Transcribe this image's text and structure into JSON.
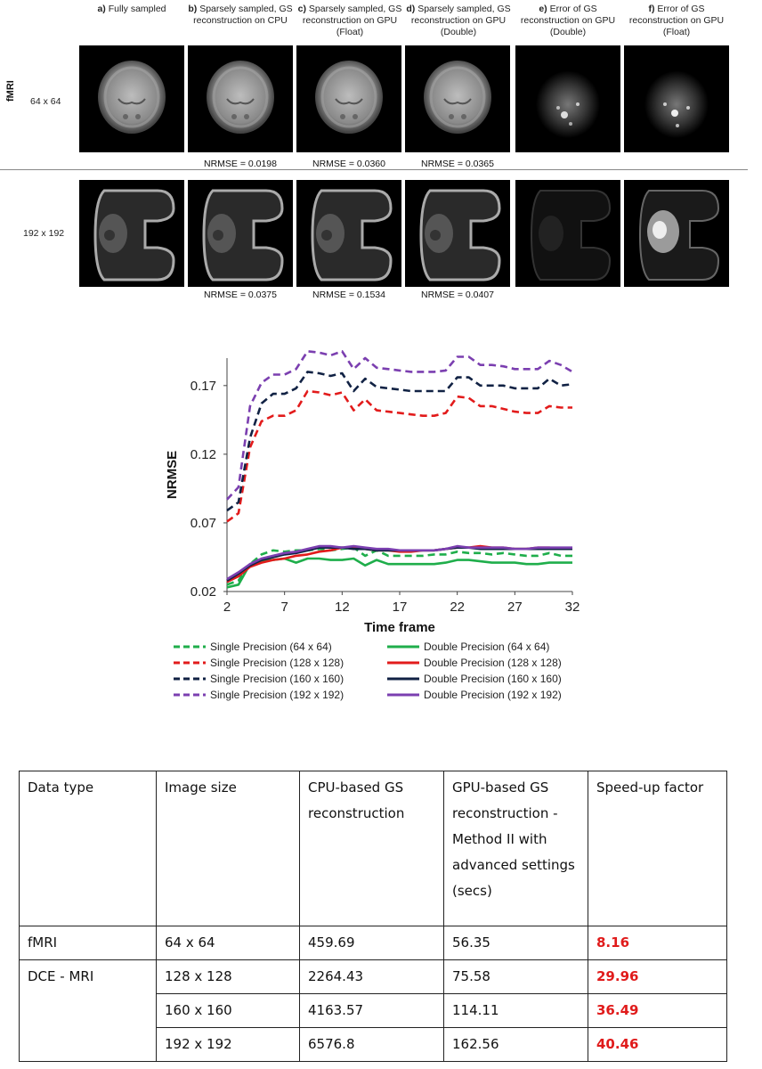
{
  "figure": {
    "row_label_fmri": "fMRI",
    "columns": [
      {
        "letter": "a)",
        "text": "Fully sampled"
      },
      {
        "letter": "b)",
        "text": "Sparsely sampled, GS reconstruction on CPU"
      },
      {
        "letter": "c)",
        "text": "Sparsely sampled, GS reconstruction on GPU (Float)"
      },
      {
        "letter": "d)",
        "text": "Sparsely sampled, GS reconstruction on GPU (Double)"
      },
      {
        "letter": "e)",
        "text": "Error of GS reconstruction on GPU (Double)"
      },
      {
        "letter": "f)",
        "text": "Error of GS reconstruction on GPU (Float)"
      }
    ],
    "rows": [
      {
        "size": "64 x 64",
        "nrmse": [
          "NRMSE = 0.0198",
          "NRMSE = 0.0360",
          "NRMSE = 0.0365"
        ]
      },
      {
        "size": "192 x 192",
        "nrmse": [
          "NRMSE = 0.0375",
          "NRMSE = 0.1534",
          "NRMSE = 0.0407"
        ]
      }
    ]
  },
  "chart_data": {
    "type": "line",
    "xlabel": "Time frame",
    "ylabel": "NRMSE",
    "xlim": [
      2,
      32
    ],
    "ylim": [
      0.02,
      0.19
    ],
    "xticks": [
      2,
      7,
      12,
      17,
      22,
      27,
      32
    ],
    "yticks": [
      0.02,
      0.07,
      0.12,
      0.17
    ],
    "ytick_labels": [
      "0.02",
      "0.07",
      "0.12",
      "0.17"
    ],
    "x": [
      2,
      3,
      4,
      5,
      6,
      7,
      8,
      9,
      10,
      11,
      12,
      13,
      14,
      15,
      16,
      17,
      18,
      19,
      20,
      21,
      22,
      23,
      24,
      25,
      26,
      27,
      28,
      29,
      30,
      31,
      32
    ],
    "series": [
      {
        "name": "Single Precision (64 x 64)",
        "color": "#1fae4b",
        "dash": true,
        "values": [
          0.025,
          0.028,
          0.04,
          0.047,
          0.05,
          0.049,
          0.05,
          0.05,
          0.051,
          0.05,
          0.051,
          0.052,
          0.046,
          0.05,
          0.046,
          0.046,
          0.046,
          0.046,
          0.047,
          0.047,
          0.049,
          0.048,
          0.048,
          0.047,
          0.048,
          0.047,
          0.046,
          0.046,
          0.048,
          0.046,
          0.046
        ]
      },
      {
        "name": "Double Precision (64 x 64)",
        "color": "#1fae4b",
        "dash": false,
        "values": [
          0.023,
          0.025,
          0.04,
          0.042,
          0.043,
          0.044,
          0.041,
          0.044,
          0.044,
          0.043,
          0.043,
          0.044,
          0.039,
          0.043,
          0.04,
          0.04,
          0.04,
          0.04,
          0.04,
          0.041,
          0.043,
          0.043,
          0.042,
          0.041,
          0.041,
          0.041,
          0.04,
          0.04,
          0.041,
          0.041,
          0.041
        ]
      },
      {
        "name": "Single Precision (128 x 128)",
        "color": "#e21b1b",
        "dash": true,
        "values": [
          0.071,
          0.077,
          0.125,
          0.144,
          0.148,
          0.148,
          0.152,
          0.166,
          0.165,
          0.163,
          0.165,
          0.152,
          0.16,
          0.152,
          0.151,
          0.15,
          0.149,
          0.148,
          0.148,
          0.15,
          0.162,
          0.161,
          0.155,
          0.155,
          0.153,
          0.151,
          0.15,
          0.15,
          0.155,
          0.154,
          0.154
        ]
      },
      {
        "name": "Double Precision (128 x 128)",
        "color": "#e21b1b",
        "dash": false,
        "values": [
          0.027,
          0.031,
          0.038,
          0.041,
          0.043,
          0.044,
          0.046,
          0.047,
          0.049,
          0.05,
          0.052,
          0.052,
          0.051,
          0.05,
          0.05,
          0.049,
          0.049,
          0.05,
          0.05,
          0.051,
          0.052,
          0.052,
          0.053,
          0.052,
          0.052,
          0.051,
          0.051,
          0.052,
          0.052,
          0.051,
          0.051
        ]
      },
      {
        "name": "Single Precision (160 x 160)",
        "color": "#112244",
        "dash": true,
        "values": [
          0.079,
          0.085,
          0.132,
          0.157,
          0.164,
          0.164,
          0.168,
          0.18,
          0.179,
          0.177,
          0.179,
          0.166,
          0.175,
          0.169,
          0.168,
          0.167,
          0.166,
          0.166,
          0.166,
          0.166,
          0.176,
          0.176,
          0.17,
          0.17,
          0.17,
          0.168,
          0.168,
          0.168,
          0.175,
          0.17,
          0.171
        ]
      },
      {
        "name": "Double Precision (160 x 160)",
        "color": "#112244",
        "dash": false,
        "values": [
          0.028,
          0.033,
          0.039,
          0.043,
          0.045,
          0.047,
          0.048,
          0.05,
          0.052,
          0.052,
          0.052,
          0.051,
          0.051,
          0.05,
          0.05,
          0.05,
          0.05,
          0.05,
          0.05,
          0.051,
          0.052,
          0.052,
          0.051,
          0.051,
          0.051,
          0.051,
          0.051,
          0.051,
          0.051,
          0.051,
          0.051
        ]
      },
      {
        "name": "Single Precision (192 x 192)",
        "color": "#7b3fb0",
        "dash": true,
        "values": [
          0.087,
          0.096,
          0.155,
          0.172,
          0.178,
          0.178,
          0.182,
          0.195,
          0.194,
          0.192,
          0.195,
          0.182,
          0.19,
          0.183,
          0.182,
          0.181,
          0.18,
          0.18,
          0.18,
          0.181,
          0.191,
          0.191,
          0.185,
          0.185,
          0.184,
          0.182,
          0.182,
          0.182,
          0.188,
          0.185,
          0.18
        ]
      },
      {
        "name": "Double Precision (192 x 192)",
        "color": "#7b3fb0",
        "dash": false,
        "values": [
          0.029,
          0.034,
          0.04,
          0.044,
          0.046,
          0.048,
          0.049,
          0.051,
          0.053,
          0.053,
          0.052,
          0.053,
          0.052,
          0.051,
          0.051,
          0.05,
          0.05,
          0.05,
          0.05,
          0.051,
          0.053,
          0.052,
          0.052,
          0.052,
          0.052,
          0.051,
          0.051,
          0.052,
          0.052,
          0.052,
          0.052
        ]
      }
    ],
    "legend": "bottom"
  },
  "table": {
    "headers": [
      "Data type",
      "Image size",
      "CPU-based GS reconstruction",
      "GPU-based GS reconstruction - Method II with advanced settings (secs)",
      "Speed-up factor"
    ],
    "rows": [
      [
        "fMRI",
        "64 x 64",
        "459.69",
        "56.35",
        "8.16"
      ],
      [
        "DCE - MRI",
        "128 x 128",
        "2264.43",
        "75.58",
        "29.96"
      ],
      [
        "",
        "160 x 160",
        "4163.57",
        "114.11",
        "36.49"
      ],
      [
        "",
        "192 x 192",
        "6576.8",
        "162.56",
        "40.46"
      ]
    ],
    "highlight_color": "#e01b1b"
  }
}
